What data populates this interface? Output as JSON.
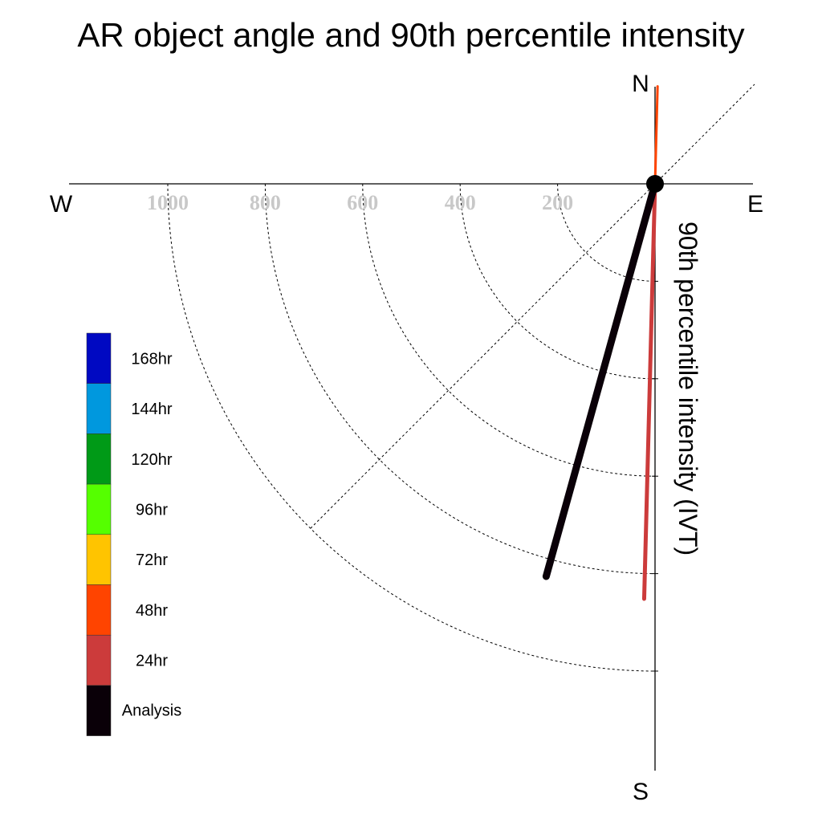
{
  "chart_data": {
    "type": "polar-vector",
    "title": "AR object angle and 90th percentile intensity",
    "compass": {
      "north": "N",
      "south": "S",
      "east": "E",
      "west": "W"
    },
    "radial_label": "90th percentile intensity (IVT)",
    "radial_ticks": [
      200,
      400,
      600,
      800,
      1000
    ],
    "radial_tick_labels": [
      "200",
      "400",
      "600",
      "800",
      "1000"
    ],
    "radial_range": [
      0,
      1000
    ],
    "diagonal_reference_line": true,
    "series": [
      {
        "name": "Analysis",
        "color": "#0a0008",
        "angle_deg": 195.5,
        "intensity": 836
      },
      {
        "name": "24hr",
        "color": "#cc3b3b",
        "angle_deg": 181.5,
        "intensity": 852
      },
      {
        "name": "48hr",
        "color": "#ff4400",
        "angle_deg": 1.5,
        "intensity": 200
      }
    ],
    "legend": {
      "entries": [
        {
          "label": "168hr",
          "color": "#0009c2"
        },
        {
          "label": "144hr",
          "color": "#0098de"
        },
        {
          "label": "120hr",
          "color": "#009a17"
        },
        {
          "label": "96hr",
          "color": "#55ff00"
        },
        {
          "label": "72hr",
          "color": "#ffc400"
        },
        {
          "label": "48hr",
          "color": "#ff4400"
        },
        {
          "label": "24hr",
          "color": "#cc3b3b"
        },
        {
          "label": "Analysis",
          "color": "#0a0008"
        }
      ]
    }
  }
}
